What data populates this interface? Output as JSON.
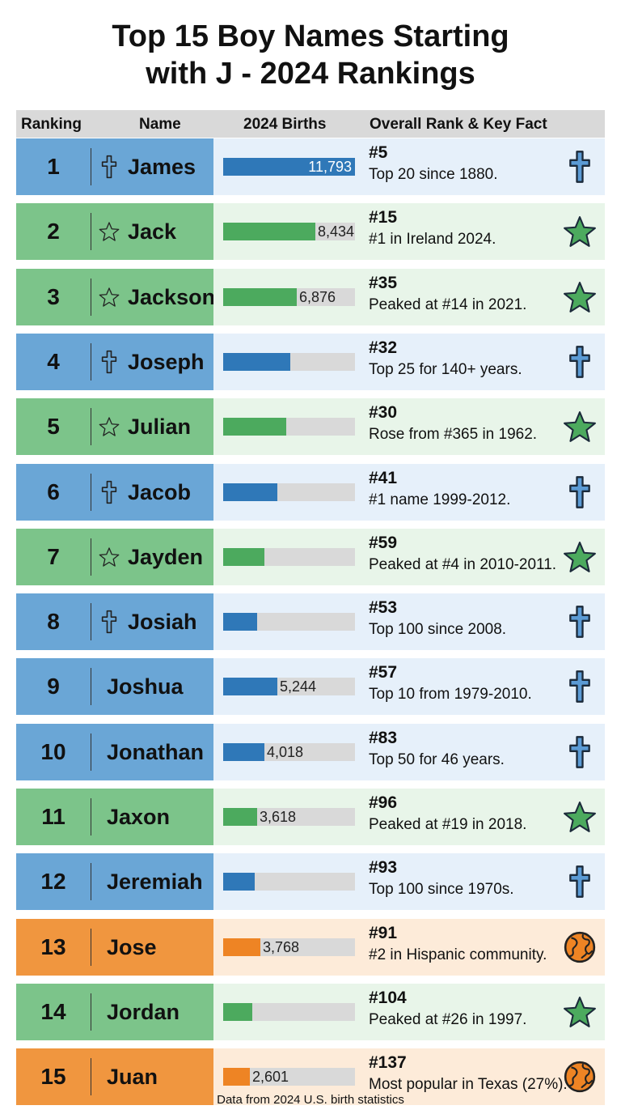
{
  "title_line1": "Top 15 Boy Names Starting",
  "title_line2": "with J - 2024 Rankings",
  "footer": "Data from 2024 U.S. birth statistics",
  "colors": {
    "blue": "#6aa6d6",
    "blue_bar": "#2f78b8",
    "blue_bg": "#e6f0fa",
    "green": "#7cc48a",
    "green_bar": "#4caa5e",
    "green_bg": "#e8f5e9",
    "orange": "#f0963f",
    "orange_bar": "#ee8424",
    "orange_bg": "#fdebd9"
  },
  "chart_data": {
    "type": "table",
    "columns": [
      "Ranking",
      "Name",
      "2024 Births",
      "Overall Rank & Key Fact"
    ],
    "rows": [
      {
        "rank": "1",
        "name": "James",
        "births": "11,793",
        "fill": 1.0,
        "overall": "#5",
        "fact": "Top 20 since 1880.",
        "theme": "blue",
        "name_icon": "cross",
        "icon": "cross"
      },
      {
        "rank": "2",
        "name": "Jack",
        "births": "8,434",
        "fill": 0.7,
        "overall": "#15",
        "fact": "#1 in Ireland 2024.",
        "theme": "green",
        "name_icon": "star",
        "icon": "star"
      },
      {
        "rank": "3",
        "name": "Jackson",
        "births": "6,876",
        "fill": 0.56,
        "overall": "#35",
        "fact": "Peaked at #14 in 2021.",
        "theme": "green",
        "name_icon": "star",
        "icon": "star"
      },
      {
        "rank": "4",
        "name": "Joseph",
        "births": null,
        "fill": 0.51,
        "overall": "#32",
        "fact": "Top 25 for 140+ years.",
        "theme": "blue",
        "name_icon": "cross",
        "icon": "cross"
      },
      {
        "rank": "5",
        "name": "Julian",
        "births": null,
        "fill": 0.48,
        "overall": "#30",
        "fact": "Rose from #365 in 1962.",
        "theme": "green",
        "name_icon": "star",
        "icon": "star"
      },
      {
        "rank": "6",
        "name": "Jacob",
        "births": null,
        "fill": 0.41,
        "overall": "#41",
        "fact": "#1 name 1999-2012.",
        "theme": "blue",
        "name_icon": "cross",
        "icon": "cross"
      },
      {
        "rank": "7",
        "name": "Jayden",
        "births": null,
        "fill": 0.31,
        "overall": "#59",
        "fact": "Peaked at #4 in 2010-2011.",
        "theme": "green",
        "name_icon": "star",
        "icon": "star"
      },
      {
        "rank": "8",
        "name": "Josiah",
        "births": null,
        "fill": 0.26,
        "overall": "#53",
        "fact": "Top 100 since 2008.",
        "theme": "blue",
        "name_icon": "cross",
        "icon": "cross"
      },
      {
        "rank": "9",
        "name": "Joshua",
        "births": "5,244",
        "fill": 0.41,
        "overall": "#57",
        "fact": "Top 10 from 1979-2010.",
        "theme": "blue",
        "name_icon": null,
        "icon": "cross"
      },
      {
        "rank": "10",
        "name": "Jonathan",
        "births": "4,018",
        "fill": 0.31,
        "overall": "#83",
        "fact": "Top 50 for 46 years.",
        "theme": "blue",
        "name_icon": null,
        "icon": "cross"
      },
      {
        "rank": "11",
        "name": "Jaxon",
        "births": "3,618",
        "fill": 0.26,
        "overall": "#96",
        "fact": "Peaked at #19 in 2018.",
        "theme": "green",
        "name_icon": null,
        "icon": "star"
      },
      {
        "rank": "12",
        "name": "Jeremiah",
        "births": null,
        "fill": 0.24,
        "overall": "#93",
        "fact": "Top 100 since 1970s.",
        "theme": "blue",
        "name_icon": null,
        "icon": "cross"
      },
      {
        "rank": "13",
        "name": "Jose",
        "births": "3,768",
        "fill": 0.28,
        "overall": "#91",
        "fact": "#2 in Hispanic community.",
        "theme": "orange",
        "name_icon": null,
        "icon": "globe"
      },
      {
        "rank": "14",
        "name": "Jordan",
        "births": null,
        "fill": 0.22,
        "overall": "#104",
        "fact": "Peaked at #26 in 1997.",
        "theme": "green",
        "name_icon": null,
        "icon": "star"
      },
      {
        "rank": "15",
        "name": "Juan",
        "births": "2,601",
        "fill": 0.2,
        "overall": "#137",
        "fact": "Most popular in Texas (27%).",
        "theme": "orange",
        "name_icon": null,
        "icon": "globe"
      }
    ]
  }
}
